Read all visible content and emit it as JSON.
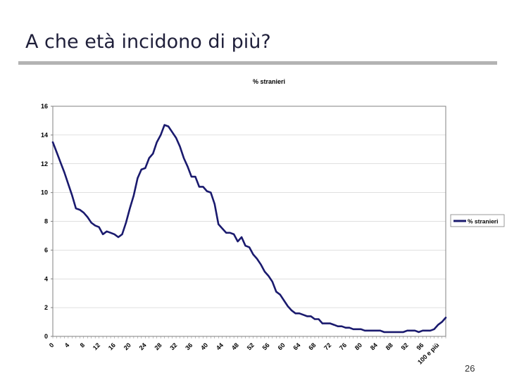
{
  "slide": {
    "title": "A che età incidono di più?",
    "page_number": "26"
  },
  "colors": {
    "series": "#1a1a6e",
    "plot_border": "#808080",
    "grid": "#c0c0c0",
    "axis_text": "#000000"
  },
  "chart_data": {
    "type": "line",
    "title": "% stranieri",
    "xlabel": "",
    "ylabel": "",
    "ylim": [
      0,
      16
    ],
    "yticks": [
      0,
      2,
      4,
      6,
      8,
      10,
      12,
      14,
      16
    ],
    "grid": true,
    "legend_position": "right",
    "x_tick_labels": [
      "0",
      "4",
      "8",
      "12",
      "16",
      "20",
      "24",
      "28",
      "32",
      "36",
      "40",
      "44",
      "48",
      "52",
      "56",
      "60",
      "64",
      "68",
      "72",
      "76",
      "80",
      "84",
      "88",
      "92",
      "96",
      "100 e più"
    ],
    "x_tick_indices": [
      0,
      4,
      8,
      12,
      16,
      20,
      24,
      28,
      32,
      36,
      40,
      44,
      48,
      52,
      56,
      60,
      64,
      68,
      72,
      76,
      80,
      84,
      88,
      92,
      96,
      100
    ],
    "series": [
      {
        "name": "% stranieri",
        "values": [
          13.5,
          12.8,
          12.1,
          11.4,
          10.6,
          9.8,
          8.9,
          8.8,
          8.6,
          8.3,
          7.9,
          7.7,
          7.6,
          7.1,
          7.3,
          7.2,
          7.1,
          6.9,
          7.1,
          7.9,
          8.9,
          9.8,
          11.0,
          11.6,
          11.7,
          12.4,
          12.7,
          13.5,
          14.0,
          14.7,
          14.6,
          14.2,
          13.8,
          13.2,
          12.4,
          11.8,
          11.1,
          11.1,
          10.4,
          10.4,
          10.1,
          10.0,
          9.2,
          7.8,
          7.5,
          7.2,
          7.2,
          7.1,
          6.6,
          6.9,
          6.3,
          6.2,
          5.7,
          5.4,
          5.0,
          4.5,
          4.2,
          3.8,
          3.1,
          2.9,
          2.5,
          2.1,
          1.8,
          1.6,
          1.6,
          1.5,
          1.4,
          1.4,
          1.2,
          1.2,
          0.9,
          0.9,
          0.9,
          0.8,
          0.7,
          0.7,
          0.6,
          0.6,
          0.5,
          0.5,
          0.5,
          0.4,
          0.4,
          0.4,
          0.4,
          0.4,
          0.3,
          0.3,
          0.3,
          0.3,
          0.3,
          0.3,
          0.4,
          0.4,
          0.4,
          0.3,
          0.4,
          0.4,
          0.4,
          0.5,
          0.8,
          1.0,
          1.3
        ]
      }
    ]
  }
}
